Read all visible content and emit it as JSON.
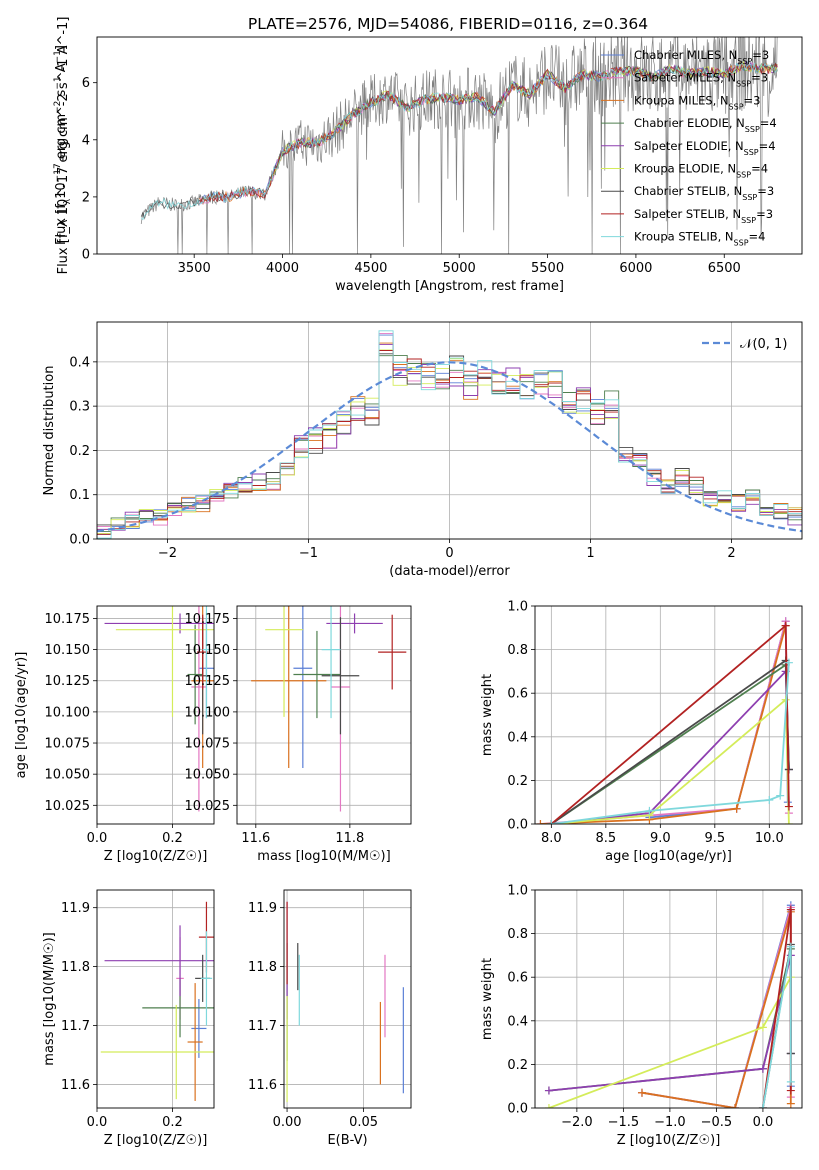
{
  "figure_title": "PLATE=2576, MJD=54086, FIBERID=0116, z=0.364",
  "models": [
    {
      "name": "Chabrier MILES",
      "nssp": "3",
      "color": "#5b7fd6"
    },
    {
      "name": "Salpeter MILES",
      "nssp": "3",
      "color": "#e377c2"
    },
    {
      "name": "Kroupa MILES",
      "nssp": "3",
      "color": "#d9711f"
    },
    {
      "name": "Chabrier ELODIE",
      "nssp": "4",
      "color": "#4f7f4f"
    },
    {
      "name": "Salpeter ELODIE",
      "nssp": "4",
      "color": "#8e3fb0"
    },
    {
      "name": "Kroupa ELODIE",
      "nssp": "4",
      "color": "#d4ec5a"
    },
    {
      "name": "Chabrier STELIB",
      "nssp": "3",
      "color": "#4a4a4a"
    },
    {
      "name": "Salpeter STELIB",
      "nssp": "3",
      "color": "#b22222"
    },
    {
      "name": "Kroupa STELIB",
      "nssp": "4",
      "color": "#7fd8dc"
    }
  ],
  "chart_data": [
    {
      "id": "spectrum",
      "type": "line",
      "xlabel": "wavelength [Angstrom, rest frame]",
      "ylabel": "Flux [f_λ 10^-17 erg cm^-2 s^-1 A^-1]",
      "xlim": [
        2950,
        6940
      ],
      "ylim": [
        0,
        7.6
      ],
      "xticks": [
        3500,
        4000,
        4500,
        5000,
        5500,
        6000,
        6500
      ],
      "yticks": [
        0,
        2,
        4,
        6
      ],
      "legend": "top-right",
      "continuum": {
        "x": [
          3200,
          3300,
          3400,
          3500,
          3600,
          3700,
          3800,
          3900,
          4000,
          4100,
          4200,
          4300,
          4400,
          4500,
          4600,
          4700,
          4800,
          4900,
          5000,
          5100,
          5200,
          5300,
          5400,
          5500,
          5600,
          5700,
          5800,
          5900,
          6000,
          6100,
          6200,
          6300,
          6400,
          6500,
          6600,
          6700,
          6800
        ],
        "y": [
          1.3,
          1.8,
          1.7,
          1.8,
          2.0,
          2.0,
          2.2,
          2.1,
          3.6,
          3.9,
          3.9,
          4.3,
          4.9,
          5.3,
          5.6,
          5.1,
          5.4,
          5.5,
          5.4,
          5.5,
          5.0,
          5.9,
          5.6,
          6.3,
          5.8,
          6.3,
          6.2,
          6.4,
          6.4,
          6.2,
          6.5,
          6.3,
          6.4,
          6.3,
          6.6,
          6.5,
          6.5
        ]
      },
      "model_starts": [
        3530,
        3530,
        3530,
        3920,
        3920,
        3920,
        3200,
        3530,
        3200
      ]
    },
    {
      "id": "residuals",
      "type": "line",
      "xlabel": "(data-model)/error",
      "ylabel": "Normed distribution",
      "xlim": [
        -2.5,
        2.5
      ],
      "ylim": [
        0,
        0.49
      ],
      "xticks": [
        -2,
        -1,
        0,
        1,
        2
      ],
      "yticks": [
        0.0,
        0.1,
        0.2,
        0.3,
        0.4
      ],
      "legend": "top-right",
      "reference_label": "𝒩(0, 1)",
      "bin_edges": [
        -2.5,
        -2.4,
        -2.3,
        -2.2,
        -2.1,
        -2.0,
        -1.9,
        -1.8,
        -1.7,
        -1.6,
        -1.5,
        -1.4,
        -1.3,
        -1.2,
        -1.1,
        -1.0,
        -0.9,
        -0.8,
        -0.7,
        -0.6,
        -0.5,
        -0.4,
        -0.3,
        -0.2,
        -0.1,
        0.0,
        0.1,
        0.2,
        0.3,
        0.4,
        0.5,
        0.6,
        0.7,
        0.8,
        0.9,
        1.0,
        1.1,
        1.2,
        1.3,
        1.4,
        1.5,
        1.6,
        1.7,
        1.8,
        1.9,
        2.0,
        2.1,
        2.2,
        2.3,
        2.4,
        2.5
      ],
      "base_density": [
        0.02,
        0.03,
        0.04,
        0.05,
        0.05,
        0.07,
        0.08,
        0.08,
        0.1,
        0.11,
        0.12,
        0.13,
        0.13,
        0.16,
        0.21,
        0.22,
        0.24,
        0.27,
        0.3,
        0.29,
        0.44,
        0.38,
        0.38,
        0.37,
        0.36,
        0.38,
        0.35,
        0.38,
        0.36,
        0.36,
        0.34,
        0.35,
        0.35,
        0.3,
        0.31,
        0.29,
        0.3,
        0.19,
        0.18,
        0.14,
        0.12,
        0.14,
        0.12,
        0.09,
        0.09,
        0.08,
        0.09,
        0.07,
        0.06,
        0.05
      ]
    },
    {
      "id": "z-age",
      "type": "scatter",
      "xlabel": "Z [log10(Z/Z☉)]",
      "ylabel": "age [log10(age/yr)]",
      "xlim": [
        0,
        0.31
      ],
      "ylim": [
        10.01,
        10.185
      ],
      "xticks": [
        0.0,
        0.2
      ],
      "yticks": [
        10.025,
        10.05,
        10.075,
        10.1,
        10.125,
        10.15,
        10.175
      ],
      "points": [
        {
          "x": 0.29,
          "y": 10.135,
          "xerr": 0.02,
          "yerr": 0.04
        },
        {
          "x": 0.27,
          "y": 10.12,
          "xerr": 0.02,
          "yerr": 0.1
        },
        {
          "x": 0.28,
          "y": 10.125,
          "xerr": 0.03,
          "yerr": 0.07
        },
        {
          "x": 0.26,
          "y": 10.13,
          "xerr": 0.02,
          "yerr": 0.04
        },
        {
          "x": 0.22,
          "y": 10.171,
          "xerr": 0.2,
          "yerr": 0.008
        },
        {
          "x": 0.2,
          "y": 10.166,
          "xerr": 0.15,
          "yerr": 0.07
        },
        {
          "x": 0.28,
          "y": 10.129,
          "xerr": 0.02,
          "yerr": 0.047
        },
        {
          "x": 0.28,
          "y": 10.148,
          "xerr": 0.015,
          "yerr": 0.03
        },
        {
          "x": 0.29,
          "y": 10.15,
          "xerr": 0.01,
          "yerr": 0.055
        }
      ]
    },
    {
      "id": "mass-age",
      "type": "scatter",
      "xlabel": "mass [log10(M/M☉)]",
      "ylabel": "",
      "xlim": [
        11.56,
        11.93
      ],
      "ylim": [
        10.01,
        10.185
      ],
      "xticks": [
        11.6,
        11.8
      ],
      "yticks": [
        10.025,
        10.05,
        10.075,
        10.1,
        10.125,
        10.15,
        10.175
      ],
      "points": [
        {
          "x": 11.7,
          "y": 10.135,
          "xerr": 0.02,
          "yerr": 0.08
        },
        {
          "x": 11.78,
          "y": 10.12,
          "xerr": 0.02,
          "yerr": 0.1
        },
        {
          "x": 11.67,
          "y": 10.125,
          "xerr": 0.08,
          "yerr": 0.07
        },
        {
          "x": 11.73,
          "y": 10.13,
          "xerr": 0.05,
          "yerr": 0.035
        },
        {
          "x": 11.81,
          "y": 10.171,
          "xerr": 0.06,
          "yerr": 0.008
        },
        {
          "x": 11.66,
          "y": 10.166,
          "xerr": 0.04,
          "yerr": 0.07
        },
        {
          "x": 11.78,
          "y": 10.129,
          "xerr": 0.04,
          "yerr": 0.047
        },
        {
          "x": 11.89,
          "y": 10.148,
          "xerr": 0.03,
          "yerr": 0.03
        },
        {
          "x": 11.76,
          "y": 10.15,
          "xerr": 0.02,
          "yerr": 0.055
        }
      ]
    },
    {
      "id": "age-massweight",
      "type": "line",
      "xlabel": "age [log10(age/yr)]",
      "ylabel": "mass weight",
      "xlim": [
        7.85,
        10.3
      ],
      "ylim": [
        0,
        1.0
      ],
      "xticks": [
        8.0,
        8.5,
        9.0,
        9.5,
        10.0
      ],
      "yticks": [
        0.0,
        0.2,
        0.4,
        0.6,
        0.8,
        1.0
      ],
      "series": [
        {
          "x": [
            8.9,
            9.7,
            10.15,
            10.17
          ],
          "y": [
            0.03,
            0.07,
            0.93,
            0.1
          ]
        },
        {
          "x": [
            7.9,
            9.7,
            10.15,
            10.18
          ],
          "y": [
            0.0,
            0.07,
            0.93,
            0.05
          ]
        },
        {
          "x": [
            7.9,
            8.9,
            9.7,
            10.15
          ],
          "y": [
            0.0,
            0.02,
            0.07,
            0.91
          ]
        },
        {
          "x": [
            8.0,
            10.15,
            10.18
          ],
          "y": [
            0.0,
            0.73,
            0.25
          ]
        },
        {
          "x": [
            8.0,
            8.9,
            10.15,
            10.18
          ],
          "y": [
            0.0,
            0.05,
            0.7,
            0.25
          ]
        },
        {
          "x": [
            8.0,
            8.9,
            10.15,
            10.18
          ],
          "y": [
            0.0,
            0.04,
            0.57,
            0.0
          ]
        },
        {
          "x": [
            8.0,
            10.15,
            10.18
          ],
          "y": [
            0.0,
            0.75,
            0.25
          ]
        },
        {
          "x": [
            8.0,
            10.15,
            10.18
          ],
          "y": [
            0.0,
            0.91,
            0.08
          ]
        },
        {
          "x": [
            8.0,
            8.9,
            10.0,
            10.1,
            10.18
          ],
          "y": [
            0.0,
            0.06,
            0.11,
            0.13,
            0.74
          ]
        }
      ]
    },
    {
      "id": "z-mass",
      "type": "scatter",
      "xlabel": "Z [log10(Z/Z☉)]",
      "ylabel": "mass [log10(M/M☉)]",
      "xlim": [
        0,
        0.31
      ],
      "ylim": [
        11.56,
        11.93
      ],
      "xticks": [
        0.0,
        0.2
      ],
      "yticks": [
        11.6,
        11.7,
        11.8,
        11.9
      ],
      "points": [
        {
          "x": 0.27,
          "y": 11.695,
          "xerr": 0.02,
          "yerr": 0.05
        },
        {
          "x": 0.22,
          "y": 11.78,
          "xerr": 0.01,
          "yerr": 0.07
        },
        {
          "x": 0.26,
          "y": 11.672,
          "xerr": 0.02,
          "yerr": 0.1
        },
        {
          "x": 0.22,
          "y": 11.73,
          "xerr": 0.1,
          "yerr": 0.05
        },
        {
          "x": 0.22,
          "y": 11.81,
          "xerr": 0.2,
          "yerr": 0.06
        },
        {
          "x": 0.21,
          "y": 11.655,
          "xerr": 0.2,
          "yerr": 0.08
        },
        {
          "x": 0.28,
          "y": 11.78,
          "xerr": 0.02,
          "yerr": 0.04
        },
        {
          "x": 0.29,
          "y": 11.85,
          "xerr": 0.02,
          "yerr": 0.06
        },
        {
          "x": 0.29,
          "y": 11.78,
          "xerr": 0.015,
          "yerr": 0.08
        }
      ]
    },
    {
      "id": "ebv-mass",
      "type": "scatter",
      "xlabel": "E(B-V)",
      "ylabel": "",
      "xlim": [
        -0.002,
        0.081
      ],
      "ylim": [
        11.56,
        11.93
      ],
      "xticks": [
        0.0,
        0.05
      ],
      "yticks": [
        11.6,
        11.7,
        11.8,
        11.9
      ],
      "points": [
        {
          "x": 0.076,
          "y": 11.675,
          "xerr": 0,
          "yerr": 0.09
        },
        {
          "x": 0.064,
          "y": 11.75,
          "xerr": 0,
          "yerr": 0.07
        },
        {
          "x": 0.061,
          "y": 11.67,
          "xerr": 0,
          "yerr": 0.07
        },
        {
          "x": 0.0,
          "y": 11.74,
          "xerr": 0,
          "yerr": 0.1
        },
        {
          "x": 0.0,
          "y": 11.81,
          "xerr": 0,
          "yerr": 0.1
        },
        {
          "x": 0.0,
          "y": 11.66,
          "xerr": 0,
          "yerr": 0.09
        },
        {
          "x": 0.007,
          "y": 11.8,
          "xerr": 0,
          "yerr": 0.04
        },
        {
          "x": 0.0,
          "y": 11.84,
          "xerr": 0,
          "yerr": 0.07
        },
        {
          "x": 0.008,
          "y": 11.76,
          "xerr": 0,
          "yerr": 0.06
        }
      ]
    },
    {
      "id": "z-massweight",
      "type": "line",
      "xlabel": "Z [log10(Z/Z☉)]",
      "ylabel": "mass weight",
      "xlim": [
        -2.45,
        0.42
      ],
      "ylim": [
        0,
        1.0
      ],
      "xticks": [
        -2.0,
        -1.5,
        -1.0,
        -0.5,
        0.0
      ],
      "yticks": [
        0.0,
        0.2,
        0.4,
        0.6,
        0.8,
        1.0
      ],
      "series": [
        {
          "x": [
            -1.3,
            -0.3,
            0.3,
            0.3
          ],
          "y": [
            0.07,
            0.0,
            0.93,
            0.1
          ]
        },
        {
          "x": [
            -1.3,
            -0.3,
            0.3,
            0.3
          ],
          "y": [
            0.07,
            0.0,
            0.92,
            0.05
          ]
        },
        {
          "x": [
            -1.3,
            -0.3,
            0.3,
            0.3
          ],
          "y": [
            0.07,
            0.0,
            0.9,
            0.02
          ]
        },
        {
          "x": [
            -2.3,
            0.0,
            0.3,
            0.3
          ],
          "y": [
            0.08,
            0.18,
            0.73,
            0.25
          ]
        },
        {
          "x": [
            -2.3,
            0.0,
            0.3,
            0.3
          ],
          "y": [
            0.08,
            0.18,
            0.7,
            0.25
          ]
        },
        {
          "x": [
            -2.3,
            0.0,
            0.3
          ],
          "y": [
            0.0,
            0.37,
            0.6
          ]
        },
        {
          "x": [
            0.0,
            0.3,
            0.3
          ],
          "y": [
            0.0,
            0.75,
            0.25
          ]
        },
        {
          "x": [
            0.0,
            0.3,
            0.3
          ],
          "y": [
            0.0,
            0.91,
            0.08
          ]
        },
        {
          "x": [
            0.0,
            0.3,
            0.3
          ],
          "y": [
            0.0,
            0.74,
            0.12
          ]
        }
      ]
    }
  ]
}
